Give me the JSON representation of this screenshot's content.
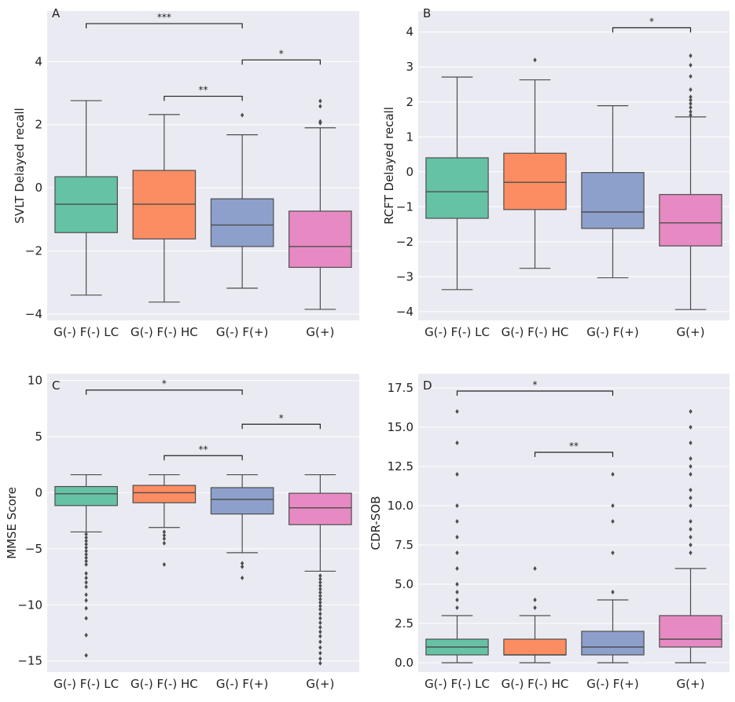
{
  "chart_data": [
    {
      "type": "box",
      "panel": "A",
      "ylabel": "SVLT Delayed recall",
      "ylim": [
        -4.2,
        5.6
      ],
      "yticks": [
        -4,
        -2,
        0,
        2,
        4
      ],
      "categories": [
        "G(-) F(-) LC",
        "G(-) F(-) HC",
        "G(-) F(+)",
        "G(+)"
      ],
      "colors": [
        "#66c2a5",
        "#fc8d62",
        "#8da0cb",
        "#e78ac3"
      ],
      "boxes": [
        {
          "low": -3.4,
          "q1": -1.42,
          "median": -0.52,
          "q3": 0.35,
          "high": 2.76,
          "fliers": []
        },
        {
          "low": -3.62,
          "q1": -1.62,
          "median": -0.52,
          "q3": 0.55,
          "high": 2.32,
          "fliers": []
        },
        {
          "low": -3.18,
          "q1": -1.86,
          "median": -1.18,
          "q3": -0.35,
          "high": 1.68,
          "fliers": [
            2.3
          ]
        },
        {
          "low": -3.85,
          "q1": -2.52,
          "median": -1.86,
          "q3": -0.74,
          "high": 1.9,
          "fliers": [
            2.05,
            2.1,
            2.58,
            2.75
          ]
        }
      ],
      "significance": [
        {
          "from": 0,
          "to": 2,
          "y": 5.2,
          "label": "***"
        },
        {
          "from": 1,
          "to": 2,
          "y": 2.9,
          "label": "**"
        },
        {
          "from": 2,
          "to": 3,
          "y": 4.05,
          "label": "*"
        }
      ]
    },
    {
      "type": "box",
      "panel": "B",
      "ylabel": "RCFT Delayed recall",
      "ylim": [
        -4.25,
        4.6
      ],
      "yticks": [
        -4,
        -3,
        -2,
        -1,
        0,
        1,
        2,
        3,
        4
      ],
      "categories": [
        "G(-) F(-) LC",
        "G(-) F(-) HC",
        "G(-) F(+)",
        "G(+)"
      ],
      "colors": [
        "#66c2a5",
        "#fc8d62",
        "#8da0cb",
        "#e78ac3"
      ],
      "boxes": [
        {
          "low": -3.37,
          "q1": -1.33,
          "median": -0.57,
          "q3": 0.4,
          "high": 2.71,
          "fliers": []
        },
        {
          "low": -2.76,
          "q1": -1.08,
          "median": -0.3,
          "q3": 0.53,
          "high": 2.63,
          "fliers": [
            3.2
          ]
        },
        {
          "low": -3.03,
          "q1": -1.62,
          "median": -1.15,
          "q3": -0.02,
          "high": 1.89,
          "fliers": []
        },
        {
          "low": -3.94,
          "q1": -2.12,
          "median": -1.46,
          "q3": -0.65,
          "high": 1.57,
          "fliers": [
            1.62,
            1.72,
            1.84,
            1.95,
            2.05,
            2.14,
            2.35,
            2.73,
            3.05,
            3.32
          ]
        }
      ],
      "significance": [
        {
          "from": 2,
          "to": 3,
          "y": 4.12,
          "label": "*"
        }
      ]
    },
    {
      "type": "box",
      "panel": "C",
      "ylabel": "MMSE Score",
      "ylim": [
        -16.0,
        10.6
      ],
      "yticks": [
        -15,
        -10,
        -5,
        0,
        5,
        10
      ],
      "categories": [
        "G(-) F(-) LC",
        "G(-) F(-) HC",
        "G(-) F(+)",
        "G(+)"
      ],
      "colors": [
        "#66c2a5",
        "#fc8d62",
        "#8da0cb",
        "#e78ac3"
      ],
      "boxes": [
        {
          "low": -3.5,
          "q1": -1.15,
          "median": -0.1,
          "q3": 0.55,
          "high": 1.6,
          "fliers": [
            -3.7,
            -4.0,
            -4.3,
            -4.6,
            -4.9,
            -5.2,
            -5.5,
            -5.8,
            -6.1,
            -6.4,
            -7.2,
            -7.6,
            -8.0,
            -8.4,
            -9.1,
            -9.6,
            -10.3,
            -11.2,
            -12.7,
            -14.5
          ]
        },
        {
          "low": -3.1,
          "q1": -0.9,
          "median": 0.0,
          "q3": 0.65,
          "high": 1.6,
          "fliers": [
            -3.5,
            -3.8,
            -4.1,
            -4.5,
            -6.4
          ]
        },
        {
          "low": -5.35,
          "q1": -1.9,
          "median": -0.6,
          "q3": 0.45,
          "high": 1.6,
          "fliers": [
            -6.3,
            -6.6,
            -7.6
          ]
        },
        {
          "low": -7.0,
          "q1": -2.85,
          "median": -1.35,
          "q3": -0.05,
          "high": 1.6,
          "fliers": [
            -7.4,
            -7.7,
            -8.0,
            -8.3,
            -8.6,
            -8.9,
            -9.2,
            -9.5,
            -9.8,
            -10.1,
            -10.4,
            -10.8,
            -11.2,
            -11.6,
            -12.0,
            -12.4,
            -12.8,
            -13.3,
            -13.8,
            -14.3,
            -14.8,
            -15.2
          ]
        }
      ],
      "significance": [
        {
          "from": 0,
          "to": 2,
          "y": 9.15,
          "label": "*"
        },
        {
          "from": 1,
          "to": 2,
          "y": 3.3,
          "label": "**"
        },
        {
          "from": 2,
          "to": 3,
          "y": 6.1,
          "label": "*"
        }
      ]
    },
    {
      "type": "box",
      "panel": "D",
      "ylabel": "CDR-SOB",
      "ylim": [
        -0.6,
        18.4
      ],
      "yticks": [
        0.0,
        2.5,
        5.0,
        7.5,
        10.0,
        12.5,
        15.0,
        17.5
      ],
      "yticklabels": [
        "0.0",
        "2.5",
        "5.0",
        "7.5",
        "10.0",
        "12.5",
        "15.0",
        "17.5"
      ],
      "categories": [
        "G(-) F(-) LC",
        "G(-) F(-) HC",
        "G(-) F(+)",
        "G(+)"
      ],
      "colors": [
        "#66c2a5",
        "#fc8d62",
        "#8da0cb",
        "#e78ac3"
      ],
      "boxes": [
        {
          "low": 0.0,
          "q1": 0.5,
          "median": 1.0,
          "q3": 1.5,
          "high": 3.0,
          "fliers": [
            3.5,
            4.0,
            4.5,
            5.0,
            6.0,
            7.0,
            8.0,
            9.0,
            10.0,
            12.0,
            14.0,
            16.0
          ]
        },
        {
          "low": 0.0,
          "q1": 0.5,
          "median": 0.5,
          "q3": 1.5,
          "high": 3.0,
          "fliers": [
            3.5,
            4.0,
            6.0
          ]
        },
        {
          "low": 0.0,
          "q1": 0.5,
          "median": 1.0,
          "q3": 2.0,
          "high": 4.0,
          "fliers": [
            4.5,
            7.0,
            9.0,
            10.0,
            12.0
          ]
        },
        {
          "low": 0.0,
          "q1": 1.0,
          "median": 1.5,
          "q3": 3.0,
          "high": 6.0,
          "fliers": [
            7.0,
            7.5,
            8.0,
            8.5,
            9.0,
            10.0,
            10.5,
            11.0,
            12.0,
            12.5,
            13.0,
            14.0,
            15.0,
            16.0
          ]
        }
      ],
      "significance": [
        {
          "from": 0,
          "to": 2,
          "y": 17.3,
          "label": "*"
        },
        {
          "from": 1,
          "to": 2,
          "y": 13.4,
          "label": "**"
        }
      ]
    }
  ]
}
